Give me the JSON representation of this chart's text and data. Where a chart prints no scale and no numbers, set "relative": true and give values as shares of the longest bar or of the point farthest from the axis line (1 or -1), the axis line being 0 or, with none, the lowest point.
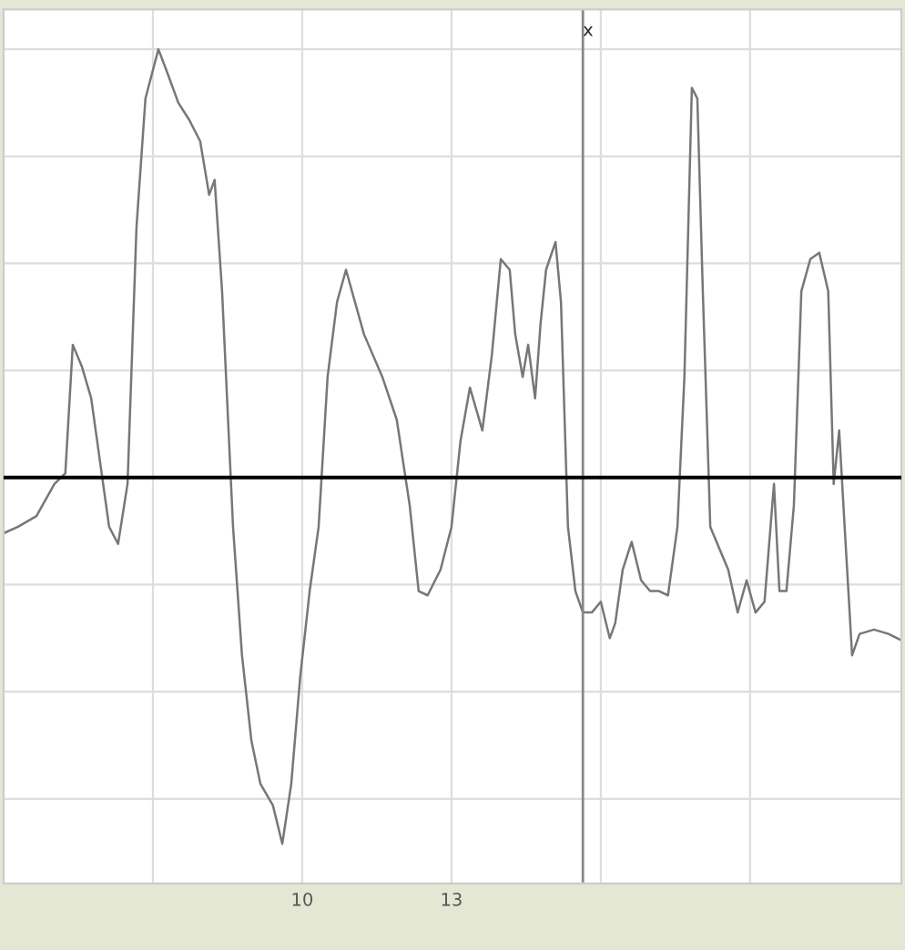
{
  "chart_data": {
    "type": "line",
    "relative": true,
    "grid": true,
    "marker": "none",
    "line_style": "solid",
    "xlim": [
      4,
      22.04
    ],
    "xticks": [
      {
        "value": 7,
        "label": null
      },
      10,
      13,
      {
        "value": 16,
        "label": null
      },
      {
        "value": 19,
        "label": null
      }
    ],
    "ref_lines": [
      {
        "axis": "x",
        "value": 15.64,
        "label": "x",
        "color": "#888888"
      }
    ],
    "series": [
      {
        "color": "#777777",
        "x": [
          4.0,
          4.29,
          4.66,
          5.02,
          5.24,
          5.39,
          5.57,
          5.76,
          5.94,
          6.12,
          6.3,
          6.49,
          6.67,
          6.85,
          7.11,
          7.29,
          7.51,
          7.73,
          7.95,
          8.13,
          8.24,
          8.39,
          8.61,
          8.79,
          8.98,
          9.16,
          9.41,
          9.6,
          9.78,
          9.96,
          10.15,
          10.33,
          10.51,
          10.7,
          10.88,
          11.06,
          11.24,
          11.61,
          11.9,
          12.16,
          12.34,
          12.52,
          12.78,
          13.0,
          13.18,
          13.37,
          13.62,
          13.81,
          13.99,
          14.17,
          14.28,
          14.43,
          14.54,
          14.68,
          14.79,
          14.9,
          15.09,
          15.2,
          15.34,
          15.49,
          15.64,
          15.82,
          16.0,
          16.18,
          16.29,
          16.44,
          16.62,
          16.81,
          16.99,
          17.17,
          17.35,
          17.54,
          17.68,
          17.83,
          17.94,
          18.05,
          18.2,
          18.38,
          18.56,
          18.75,
          18.93,
          19.11,
          19.29,
          19.48,
          19.59,
          19.73,
          19.88,
          20.03,
          20.21,
          20.39,
          20.57,
          20.68,
          20.79,
          20.9,
          21.05,
          21.2,
          21.49,
          21.78,
          22.04
        ],
        "values": [
          -0.13,
          -0.115,
          -0.09,
          -0.015,
          0.01,
          0.31,
          0.26,
          0.185,
          0.035,
          -0.115,
          -0.155,
          -0.015,
          0.585,
          0.885,
          1.0,
          0.945,
          0.875,
          0.835,
          0.785,
          0.66,
          0.695,
          0.435,
          -0.115,
          -0.415,
          -0.615,
          -0.715,
          -0.765,
          -0.855,
          -0.715,
          -0.465,
          -0.265,
          -0.115,
          0.235,
          0.41,
          0.485,
          0.41,
          0.335,
          0.235,
          0.135,
          -0.065,
          -0.265,
          -0.275,
          -0.215,
          -0.115,
          0.085,
          0.21,
          0.11,
          0.285,
          0.51,
          0.485,
          0.335,
          0.235,
          0.31,
          0.185,
          0.36,
          0.485,
          0.55,
          0.41,
          -0.115,
          -0.265,
          -0.315,
          -0.315,
          -0.29,
          -0.375,
          -0.34,
          -0.215,
          -0.15,
          -0.24,
          -0.265,
          -0.265,
          -0.275,
          -0.115,
          0.235,
          0.91,
          0.885,
          0.435,
          -0.115,
          -0.165,
          -0.215,
          -0.315,
          -0.24,
          -0.315,
          -0.29,
          -0.015,
          -0.265,
          -0.265,
          -0.065,
          0.435,
          0.51,
          0.525,
          0.435,
          -0.015,
          0.11,
          -0.115,
          -0.415,
          -0.365,
          -0.355,
          -0.365,
          -0.38
        ]
      }
    ]
  }
}
